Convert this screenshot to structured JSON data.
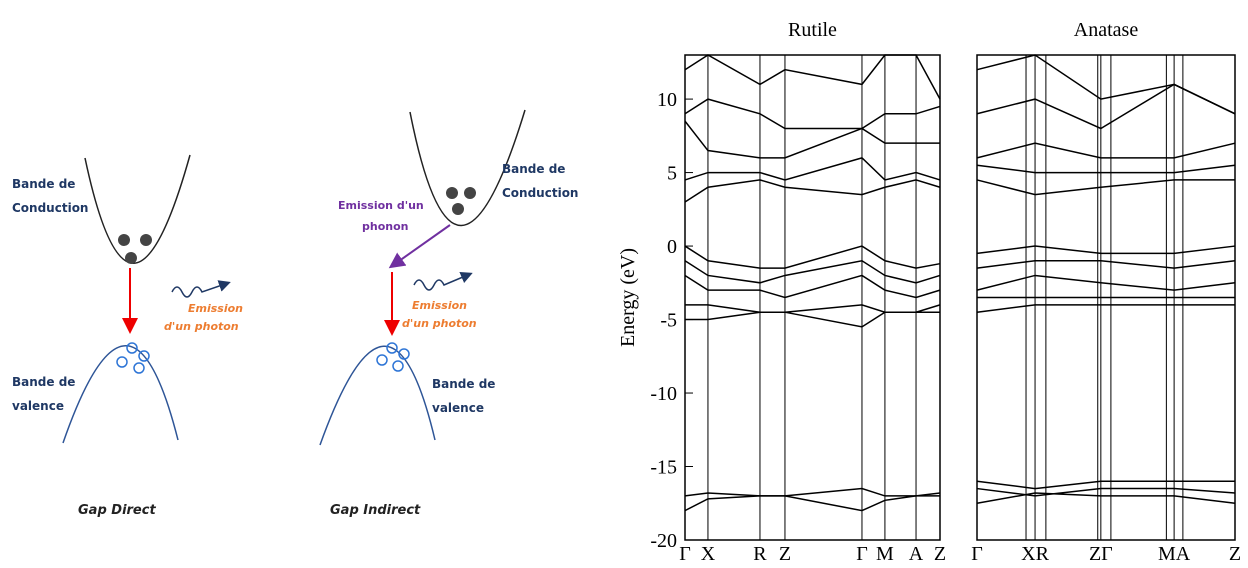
{
  "diagrams": [
    {
      "conduction": [
        "Bande de",
        "Conduction"
      ],
      "emission": [
        "Emission",
        "d'un photon"
      ],
      "valence": [
        "Bande de",
        "valence"
      ],
      "caption": "Gap Direct"
    },
    {
      "phonon": [
        "Emission d'un",
        "phonon"
      ],
      "conduction": [
        "Bande de",
        "Conduction"
      ],
      "emission": [
        "Emission",
        "d'un photon"
      ],
      "valence": [
        "Bande de",
        "valence"
      ],
      "caption": "Gap Indirect"
    }
  ],
  "chart_data": [
    {
      "type": "line",
      "title": "Rutile",
      "y_label": "Energy (eV)",
      "categories": [
        "Γ",
        "X",
        "R",
        "Z",
        "Γ",
        "M",
        "A",
        "Z"
      ],
      "ylim": [
        -20,
        13
      ],
      "yticks": [
        -20,
        -15,
        -10,
        -5,
        0,
        5,
        10
      ],
      "color": "#000000",
      "series": [
        {
          "values": [
            -17,
            -16.8,
            -17,
            -17,
            -16.5,
            -17,
            -17,
            -16.8
          ]
        },
        {
          "values": [
            -18,
            -17.2,
            -17,
            -17,
            -18,
            -17.3,
            -17,
            -17
          ]
        },
        {
          "values": [
            0,
            -1,
            -1.5,
            -1.5,
            0,
            -1,
            -1.5,
            -1.2
          ]
        },
        {
          "values": [
            -1,
            -2,
            -2.5,
            -2,
            -1,
            -2,
            -2.5,
            -2
          ]
        },
        {
          "values": [
            -2,
            -3,
            -3,
            -3.5,
            -2,
            -3,
            -3.5,
            -3
          ]
        },
        {
          "values": [
            -4,
            -4,
            -4.5,
            -4.5,
            -4,
            -4.5,
            -4.5,
            -4
          ]
        },
        {
          "values": [
            -5,
            -5,
            -4.5,
            -4.5,
            -5.5,
            -4.5,
            -4.5,
            -4.5
          ]
        },
        {
          "values": [
            3,
            4,
            4.5,
            4,
            3.5,
            4,
            4.5,
            4
          ]
        },
        {
          "values": [
            4.5,
            5,
            5,
            4.5,
            6,
            4.5,
            5,
            4.5
          ]
        },
        {
          "values": [
            8.5,
            6.5,
            6,
            6,
            8,
            7,
            7,
            7
          ]
        },
        {
          "values": [
            9,
            10,
            9,
            8,
            8,
            9,
            9,
            9.5
          ]
        },
        {
          "values": [
            12,
            13,
            11,
            12,
            11,
            13,
            13,
            10
          ]
        }
      ]
    },
    {
      "type": "line",
      "title": "Anatase",
      "categories": [
        "Γ",
        "XR",
        "ZΓ",
        "MA",
        "Z"
      ],
      "ylim": [
        -20,
        13
      ],
      "color": "#000000",
      "series": [
        {
          "values": [
            -16,
            -16.5,
            -16,
            -16,
            -16
          ]
        },
        {
          "values": [
            -16.5,
            -17,
            -16.5,
            -16.5,
            -16.8
          ]
        },
        {
          "values": [
            -17.5,
            -16.8,
            -17,
            -17,
            -17.5
          ]
        },
        {
          "values": [
            -0.5,
            0,
            -0.5,
            -0.5,
            0
          ]
        },
        {
          "values": [
            -1.5,
            -1,
            -1,
            -1.5,
            -1
          ]
        },
        {
          "values": [
            -3,
            -2,
            -2.5,
            -3,
            -2.5
          ]
        },
        {
          "values": [
            -3.5,
            -3.5,
            -3.5,
            -3.5,
            -3.5
          ]
        },
        {
          "values": [
            -4.5,
            -4,
            -4,
            -4,
            -4
          ]
        },
        {
          "values": [
            4.5,
            3.5,
            4,
            4.5,
            4.5
          ]
        },
        {
          "values": [
            5.5,
            5,
            5,
            5,
            5.5
          ]
        },
        {
          "values": [
            6,
            7,
            6,
            6,
            7
          ]
        },
        {
          "values": [
            9,
            10,
            8,
            11,
            9
          ]
        },
        {
          "values": [
            12,
            13,
            10,
            11,
            9
          ]
        }
      ]
    }
  ]
}
